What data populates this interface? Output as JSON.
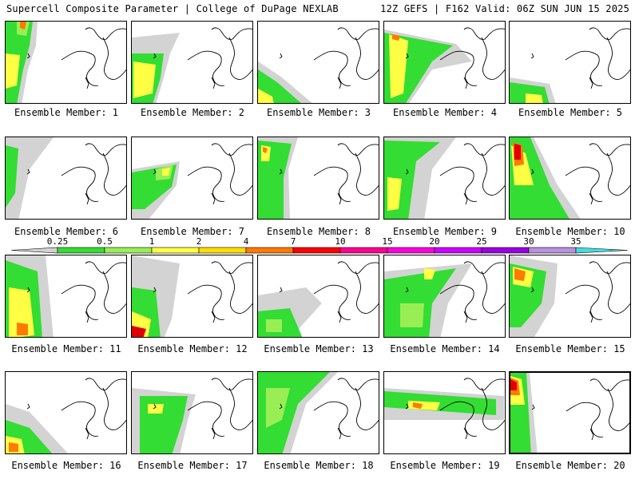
{
  "header": {
    "left": "Supercell Composite Parameter | College of DuPage NEXLAB",
    "right": "12Z GEFS | F162 Valid: 06Z SUN JUN 15 2025"
  },
  "colorbar": {
    "ticks": [
      "0.25",
      "0.5",
      "1",
      "2",
      "4",
      "7",
      "10",
      "15",
      "20",
      "25",
      "30",
      "35"
    ],
    "colors": [
      "#d3d3d3",
      "#33dd33",
      "#99ee55",
      "#ffff44",
      "#ffdd00",
      "#ff7a00",
      "#ff0000",
      "#ff0090",
      "#ff00dd",
      "#cc00ff",
      "#9a00e0",
      "#b98fe0",
      "#44dddd"
    ]
  },
  "members": [
    {
      "label": "Ensemble Member: 1"
    },
    {
      "label": "Ensemble Member: 2"
    },
    {
      "label": "Ensemble Member: 3"
    },
    {
      "label": "Ensemble Member: 4"
    },
    {
      "label": "Ensemble Member: 5"
    },
    {
      "label": "Ensemble Member: 6"
    },
    {
      "label": "Ensemble Member: 7"
    },
    {
      "label": "Ensemble Member: 8"
    },
    {
      "label": "Ensemble Member: 9"
    },
    {
      "label": "Ensemble Member: 10"
    },
    {
      "label": "Ensemble Member: 11"
    },
    {
      "label": "Ensemble Member: 12"
    },
    {
      "label": "Ensemble Member: 13"
    },
    {
      "label": "Ensemble Member: 14"
    },
    {
      "label": "Ensemble Member: 15"
    },
    {
      "label": "Ensemble Member: 16"
    },
    {
      "label": "Ensemble Member: 17"
    },
    {
      "label": "Ensemble Member: 18"
    },
    {
      "label": "Ensemble Member: 19"
    },
    {
      "label": "Ensemble Member: 20"
    }
  ]
}
